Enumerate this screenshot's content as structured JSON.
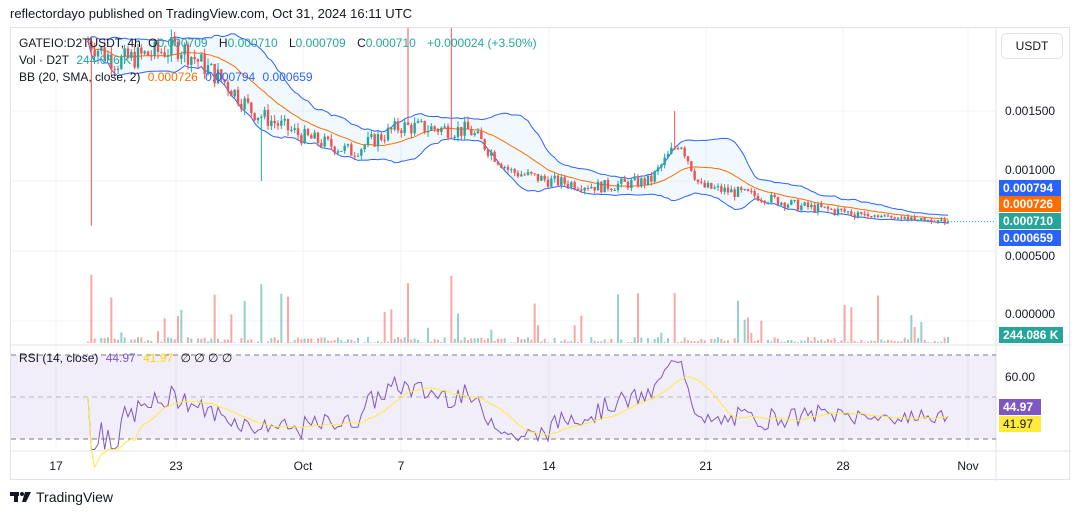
{
  "publisher_line": "reflectordayo published on TradingView.com, Oct 31, 2024 16:11 UTC",
  "legend": {
    "symbol": "GATEIO:D2TUSDT, 4h",
    "o_label": "O",
    "o": "0.000709",
    "h_label": "H",
    "h": "0.000710",
    "l_label": "L",
    "l": "0.000709",
    "c_label": "C",
    "c": "0.000710",
    "change": "+0.000024 (+3.50%)",
    "vol_label": "Vol · D2T",
    "vol": "244.086 K",
    "bb_label": "BB (20, SMA, close, 2)",
    "bb_basis": "0.000726",
    "bb_upper": "0.000794",
    "bb_lower": "0.000659",
    "rsi_label": "RSI (14, close)",
    "rsi": "44.97",
    "rsi_ma": "41.97",
    "rsi_extra": "∅ ∅ ∅ ∅"
  },
  "currency_button": "USDT",
  "price_axis": [
    "0.001500",
    "0.001000",
    "0.000500",
    "0.000000"
  ],
  "rsi_axis": [
    "60.00"
  ],
  "price_tags": {
    "bb_upper": "0.000794",
    "bb_basis": "0.000726",
    "last": "0.000710",
    "bb_lower": "0.000659",
    "volume": "244.086 K",
    "rsi": "44.97",
    "rsi_ma": "41.97"
  },
  "time_axis": [
    "17",
    "23",
    "Oct",
    "7",
    "14",
    "21",
    "28",
    "Nov"
  ],
  "brand": "TradingView",
  "colors": {
    "up": "#26a69a",
    "down": "#ef5350",
    "bb_basis": "#ff6d00",
    "bb_band": "#2962ff",
    "rsi": "#7e57c2",
    "rsi_ma": "#ffeb3b"
  },
  "chart_data": {
    "type": "candlestick",
    "note": "approximate close price path, day offsets from first labelled date",
    "keypoints": [
      [
        1.6,
        0.002
      ],
      [
        3,
        0.00185
      ],
      [
        6.2,
        0.00196
      ],
      [
        8.5,
        0.0017
      ],
      [
        9.8,
        0.0015
      ],
      [
        12.3,
        0.00132
      ],
      [
        14.8,
        0.00121
      ],
      [
        17.2,
        0.00139
      ],
      [
        20.7,
        0.00136
      ],
      [
        22.7,
        0.00107
      ],
      [
        24.7,
        0.001
      ],
      [
        27.2,
        0.00096
      ],
      [
        29.7,
        0.001
      ],
      [
        31.2,
        0.00129
      ],
      [
        32.2,
        0.00096
      ],
      [
        35.2,
        0.00089
      ],
      [
        37.2,
        0.00082
      ],
      [
        41.2,
        0.00075
      ],
      [
        44.6,
        0.00071
      ]
    ],
    "y_range": [
      0,
      0.0022
    ],
    "rsi_levels": [
      30,
      70
    ]
  }
}
